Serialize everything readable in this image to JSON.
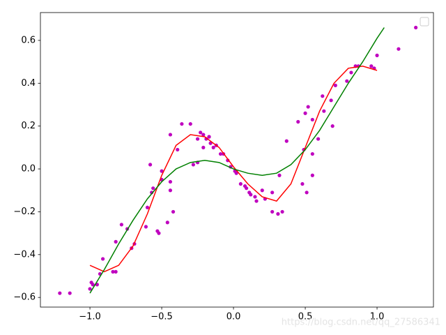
{
  "chart_data": {
    "type": "line",
    "series": [
      {
        "type": "scatter",
        "color": "#bf00bf",
        "x": [
          -1.21,
          -1.14,
          -1.0,
          -0.99,
          -0.98,
          -0.95,
          -0.93,
          -0.91,
          -0.84,
          -0.82,
          -0.82,
          -0.78,
          -0.74,
          -0.71,
          -0.69,
          -0.61,
          -0.6,
          -0.58,
          -0.57,
          -0.56,
          -0.53,
          -0.52,
          -0.5,
          -0.5,
          -0.46,
          -0.44,
          -0.44,
          -0.42,
          -0.44,
          -0.39,
          -0.36,
          -0.3,
          -0.28,
          -0.25,
          -0.25,
          -0.23,
          -0.21,
          -0.21,
          -0.19,
          -0.17,
          -0.17,
          -0.16,
          -0.14,
          -0.12,
          -0.09,
          -0.07,
          -0.04,
          -0.02,
          0.01,
          0.02,
          0.05,
          0.08,
          0.09,
          0.11,
          0.12,
          0.15,
          0.16,
          0.2,
          0.22,
          0.27,
          0.27,
          0.31,
          0.34,
          0.32,
          0.37,
          0.45,
          0.48,
          0.49,
          0.51,
          0.5,
          0.52,
          0.55,
          0.55,
          0.55,
          0.59,
          0.62,
          0.63,
          0.68,
          0.69,
          0.71,
          0.79,
          0.82,
          0.85,
          0.87,
          0.96,
          0.98,
          1.0,
          1.15,
          1.27
        ],
        "values": [
          -0.58,
          -0.58,
          -0.56,
          -0.53,
          -0.54,
          -0.54,
          -0.49,
          -0.42,
          -0.48,
          -0.34,
          -0.48,
          -0.26,
          -0.28,
          -0.37,
          -0.35,
          -0.27,
          -0.18,
          0.02,
          -0.11,
          -0.09,
          -0.29,
          -0.3,
          -0.01,
          -0.05,
          -0.25,
          -0.06,
          -0.1,
          -0.2,
          0.16,
          0.09,
          0.21,
          0.21,
          0.02,
          0.14,
          0.03,
          0.17,
          0.16,
          0.1,
          0.14,
          0.15,
          0.15,
          0.12,
          0.1,
          0.11,
          0.07,
          0.07,
          0.04,
          0.01,
          -0.01,
          -0.02,
          -0.07,
          -0.08,
          -0.09,
          -0.11,
          -0.12,
          -0.13,
          -0.15,
          -0.1,
          -0.14,
          -0.11,
          -0.2,
          -0.21,
          -0.2,
          -0.03,
          0.13,
          0.22,
          -0.07,
          0.09,
          -0.11,
          0.26,
          0.29,
          -0.03,
          0.07,
          0.23,
          0.14,
          0.34,
          0.27,
          0.32,
          0.2,
          0.39,
          0.41,
          0.45,
          0.48,
          0.48,
          0.48,
          0.47,
          0.53,
          0.56,
          0.66
        ]
      },
      {
        "type": "line",
        "color": "#ff0000",
        "x": [
          -1.0,
          -0.9,
          -0.8,
          -0.7,
          -0.6,
          -0.5,
          -0.4,
          -0.3,
          -0.2,
          -0.1,
          0.0,
          0.1,
          0.2,
          0.3,
          0.4,
          0.5,
          0.6,
          0.7,
          0.8,
          0.9,
          1.0
        ],
        "values": [
          -0.45,
          -0.48,
          -0.45,
          -0.36,
          -0.21,
          -0.03,
          0.11,
          0.16,
          0.15,
          0.1,
          0.01,
          -0.07,
          -0.13,
          -0.15,
          -0.07,
          0.1,
          0.27,
          0.4,
          0.47,
          0.48,
          0.46
        ]
      },
      {
        "type": "line",
        "color": "#008000",
        "x": [
          -1.0,
          -0.9,
          -0.8,
          -0.7,
          -0.6,
          -0.5,
          -0.4,
          -0.3,
          -0.2,
          -0.1,
          0.0,
          0.1,
          0.2,
          0.3,
          0.4,
          0.5,
          0.6,
          0.7,
          0.8,
          0.9,
          1.0,
          1.05
        ],
        "values": [
          -0.58,
          -0.47,
          -0.35,
          -0.24,
          -0.14,
          -0.06,
          0.0,
          0.03,
          0.04,
          0.03,
          0.0,
          -0.02,
          -0.03,
          -0.02,
          0.02,
          0.09,
          0.18,
          0.29,
          0.4,
          0.5,
          0.61,
          0.66
        ]
      }
    ],
    "xlim": [
      -1.345,
      1.393
    ],
    "ylim": [
      -0.645,
      0.73
    ],
    "xticks": [
      {
        "value": -1.0,
        "label": "−1.0"
      },
      {
        "value": -0.5,
        "label": "−0.5"
      },
      {
        "value": 0.0,
        "label": "0.0"
      },
      0.5,
      {
        "value": 1.0,
        "label": "1.0"
      }
    ],
    "yticks": [
      {
        "value": -0.6,
        "label": "−0.6"
      },
      {
        "value": -0.4,
        "label": "−0.4"
      },
      {
        "value": -0.2,
        "label": "−0.2"
      },
      {
        "value": 0.0,
        "label": "0.0"
      },
      0.2,
      0.4,
      0.6
    ],
    "legend": "upper right",
    "watermark": "https://blog.csdn.net/qq_27586341"
  }
}
